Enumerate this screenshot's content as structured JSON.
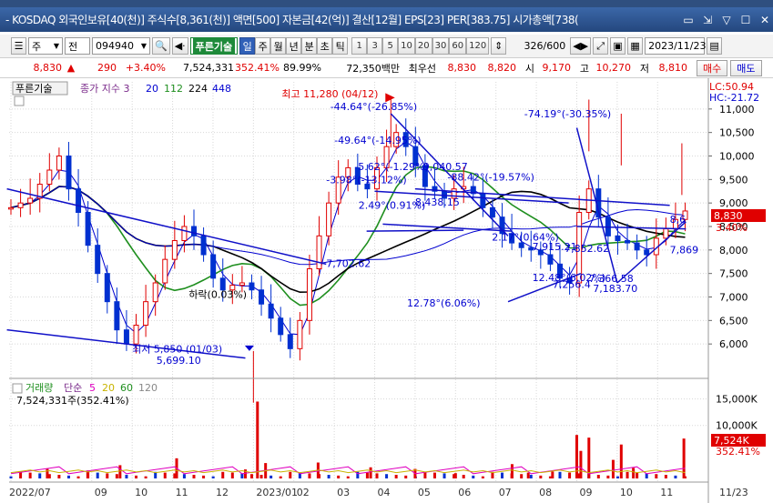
{
  "window": {
    "title": "- KOSDAQ 외국인보유[40(천)] 주식수[8,361(천)] 액면[500] 자본금[42(억)] 결산[12월] EPS[23] PER[383.75] 시가총액[738(",
    "controls": [
      "▭",
      "⇲",
      "▽",
      "☐",
      "✕"
    ]
  },
  "toolbar": {
    "type_label": "주",
    "market_label": "전",
    "stock_code": "094940",
    "stock_name": "푸른기술",
    "period_buttons": [
      "일",
      "주",
      "월",
      "년",
      "분",
      "초",
      "틱"
    ],
    "active_period": "일",
    "interval_buttons": [
      "1",
      "3",
      "5",
      "10",
      "20",
      "30",
      "60",
      "120"
    ],
    "count": "326",
    "count_total": "/600",
    "date": "2023/11/23"
  },
  "quote": {
    "price": "8,830",
    "arrow": "▲",
    "change": "290",
    "change_pct": "+3.40%",
    "volume": "7,524,331",
    "volume_pct": "352.41%",
    "ratio": "89.99%",
    "amount": "72,350백만",
    "flag": "최우선",
    "ask": "8,830",
    "bid": "8,820",
    "open_label": "시",
    "open": "9,170",
    "high_label": "고",
    "high": "10,270",
    "low_label": "저",
    "low": "8,810",
    "buy_label": "매수",
    "sell_label": "매도"
  },
  "price_panel": {
    "name": "푸른기술",
    "ma_label": "종가 지수 3",
    "ma_periods": [
      "20",
      "112",
      "224",
      "448"
    ],
    "lc": "LC:50.94",
    "hc": "HC:-21.72",
    "current_tag": "8,830",
    "current_pct": "3.40%",
    "annotations": {
      "high": "최고 11,280 (04/12)",
      "low": "최저 5,850 (01/03)",
      "a1": "-44.64°(-26.85%)",
      "a2": "-49.64°(-14.95%)",
      "a3": "-5.62°(-1.29%)",
      "a4": "-3.98°(-13.12%)",
      "a5": "2.49°(0.91%)",
      "a6": "9,040.57",
      "a7": "-88.42°(-19.57%)",
      "a8": "8,438.15",
      "a9": "-74.19°(-30.35%)",
      "a10": "2.17°(0.64%)",
      "a11": "7,915.21",
      "a12": "7,852.62",
      "a13": "12.48°(6.02%)",
      "a14": "7,256.4",
      "a15": "7,366.58",
      "a16": "7,183.70",
      "a17": "12.78°(6.06%)",
      "a18": "5,699.10",
      "a19": "7,702.62",
      "a20": "하락(0.03%)",
      "a21": "8,6",
      "a22": "7,869"
    }
  },
  "volume_panel": {
    "name": "거래량",
    "ma_label": "단순",
    "ma_periods": [
      "5",
      "20",
      "60",
      "120"
    ],
    "summary": "7,524,331주(352.41%)",
    "current_tag": "7,524K",
    "current_pct": "352.41%"
  },
  "chart_data": {
    "type": "candlestick",
    "y_ticks": [
      6000,
      6500,
      7000,
      7500,
      8000,
      8500,
      9000,
      9500,
      10000,
      10500,
      11000
    ],
    "y_tick_labels": [
      "6,000",
      "6,500",
      "7,000",
      "7,500",
      "8,000",
      "8,500",
      "9,000",
      "9,500",
      "10,000",
      "10,500",
      "11,000"
    ],
    "vol_ticks": [
      10000,
      15000
    ],
    "vol_tick_labels": [
      "10,000K",
      "15,000K"
    ],
    "x_labels": [
      "2022/07",
      "09",
      "10",
      "11",
      "12",
      "2023/01",
      "02",
      "03",
      "04",
      "05",
      "06",
      "07",
      "08",
      "09",
      "10",
      "11",
      "11/23"
    ],
    "x_label_months": [
      0,
      2,
      3,
      4,
      5,
      6,
      7,
      8,
      9,
      10,
      11,
      12,
      13,
      14,
      15,
      16,
      16.7
    ],
    "months_span": 16.85,
    "price_range": [
      5500,
      11500
    ],
    "close": [
      8900,
      9000,
      9100,
      9400,
      9700,
      10000,
      9300,
      8800,
      8100,
      7500,
      6900,
      6300,
      6000,
      6400,
      6900,
      7300,
      7800,
      8200,
      8500,
      8300,
      7900,
      7400,
      7150,
      7250,
      7300,
      7150,
      6850,
      6550,
      6200,
      5900,
      6500,
      7600,
      8300,
      9000,
      9550,
      9750,
      9400,
      9300,
      9750,
      10200,
      10500,
      10200,
      9800,
      9350,
      9250,
      9100,
      9300,
      9350,
      9200,
      8900,
      8700,
      8350,
      8150,
      8050,
      8000,
      7900,
      7700,
      7400,
      7300,
      8800,
      9300,
      8700,
      8300,
      8200,
      8150,
      8000,
      7900,
      8250,
      8450,
      8650,
      8830
    ],
    "high_pts": [
      [
        9.4,
        11280
      ],
      [
        6.0,
        5850
      ],
      [
        14.3,
        11200
      ],
      [
        15.1,
        10900
      ],
      [
        16.6,
        10270
      ]
    ],
    "volume_bars": [
      [
        0.9,
        1800
      ],
      [
        1.9,
        1500
      ],
      [
        2.7,
        2500
      ],
      [
        4.1,
        3800
      ],
      [
        5.8,
        1700
      ],
      [
        6.1,
        14500
      ],
      [
        6.3,
        2900
      ],
      [
        7.6,
        3000
      ],
      [
        8.9,
        2100
      ],
      [
        10.0,
        1800
      ],
      [
        11.0,
        1000
      ],
      [
        12.4,
        2700
      ],
      [
        12.8,
        1100
      ],
      [
        13.4,
        1300
      ],
      [
        14.0,
        8200
      ],
      [
        14.1,
        5200
      ],
      [
        14.3,
        7700
      ],
      [
        14.9,
        3500
      ],
      [
        15.1,
        6400
      ],
      [
        15.4,
        2000
      ],
      [
        16.65,
        7524
      ]
    ],
    "ma_series_names": [
      "20",
      "112",
      "224",
      "448"
    ]
  }
}
